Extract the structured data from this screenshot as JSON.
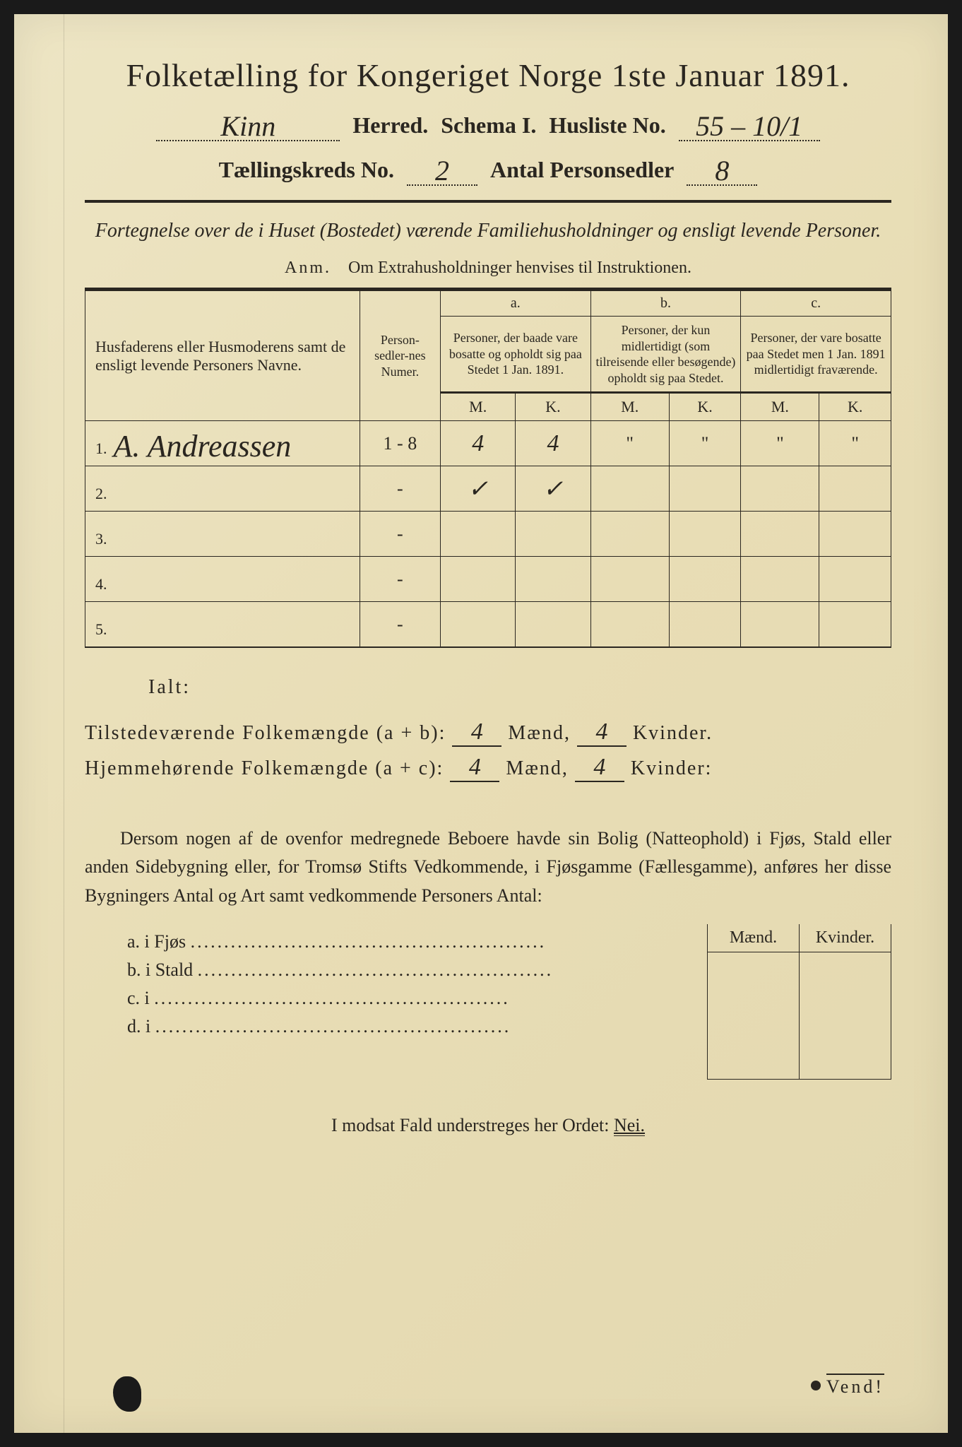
{
  "title": "Folketælling for Kongeriget Norge 1ste Januar 1891.",
  "header": {
    "herred_value": "Kinn",
    "herred_label": "Herred.",
    "schema_label": "Schema I.",
    "husliste_label": "Husliste No.",
    "husliste_value": "55 – 10/1",
    "kreds_label": "Tællingskreds No.",
    "kreds_value": "2",
    "personsedler_label": "Antal Personsedler",
    "personsedler_value": "8"
  },
  "fortegnelse": "Fortegnelse over de i Huset (Bostedet) værende Familiehusholdninger og ensligt levende Personer.",
  "anm_label": "Anm.",
  "anm_text": "Om Extrahusholdninger henvises til Instruktionen.",
  "table": {
    "col_name": "Husfaderens eller Husmoderens samt de ensligt levende Personers Navne.",
    "col_numer": "Person-sedler-nes Numer.",
    "grp_a_label": "a.",
    "grp_a_desc": "Personer, der baade vare bosatte og opholdt sig paa Stedet 1 Jan. 1891.",
    "grp_b_label": "b.",
    "grp_b_desc": "Personer, der kun midlertidigt (som tilreisende eller besøgende) opholdt sig paa Stedet.",
    "grp_c_label": "c.",
    "grp_c_desc": "Personer, der vare bosatte paa Stedet men 1 Jan. 1891 midlertidigt fraværende.",
    "m": "M.",
    "k": "K.",
    "rows": [
      {
        "n": "1.",
        "name": "A. Andreassen",
        "numer": "1 - 8",
        "am": "4",
        "ak": "4",
        "bm": "\"",
        "bk": "\"",
        "cm": "\"",
        "ck": "\""
      },
      {
        "n": "2.",
        "name": "",
        "numer": "-",
        "am": "✓",
        "ak": "✓",
        "bm": "",
        "bk": "",
        "cm": "",
        "ck": ""
      },
      {
        "n": "3.",
        "name": "",
        "numer": "-",
        "am": "",
        "ak": "",
        "bm": "",
        "bk": "",
        "cm": "",
        "ck": ""
      },
      {
        "n": "4.",
        "name": "",
        "numer": "-",
        "am": "",
        "ak": "",
        "bm": "",
        "bk": "",
        "cm": "",
        "ck": ""
      },
      {
        "n": "5.",
        "name": "",
        "numer": "-",
        "am": "",
        "ak": "",
        "bm": "",
        "bk": "",
        "cm": "",
        "ck": ""
      }
    ]
  },
  "ialt": {
    "label": "Ialt:",
    "row1_label": "Tilstedeværende Folkemængde (a + b):",
    "row2_label": "Hjemmehørende Folkemængde (a + c):",
    "maend": "Mænd,",
    "kvinder_dot": "Kvinder.",
    "kvinder_colon": "Kvinder:",
    "r1_m": "4",
    "r1_k": "4",
    "r2_m": "4",
    "r2_k": "4"
  },
  "dersom": "Dersom nogen af de ovenfor medregnede Beboere havde sin Bolig (Natteophold) i Fjøs, Stald eller anden Sidebygning eller, for Tromsø Stifts Vedkommende, i Fjøsgamme (Fællesgamme), anføres her disse Bygningers Antal og Art samt vedkommende Personers Antal:",
  "sidebyg": {
    "maend": "Mænd.",
    "kvinder": "Kvinder.",
    "a": "a.  i      Fjøs",
    "b": "b.  i      Stald",
    "c": "c.  i",
    "d": "d.  i"
  },
  "nei_text": "I modsat Fald understreges her Ordet:",
  "nei_word": "Nei.",
  "vend": "Vend!",
  "colors": {
    "paper": "#e8ddb5",
    "ink": "#2a2620",
    "frame": "#1a1a1a"
  }
}
